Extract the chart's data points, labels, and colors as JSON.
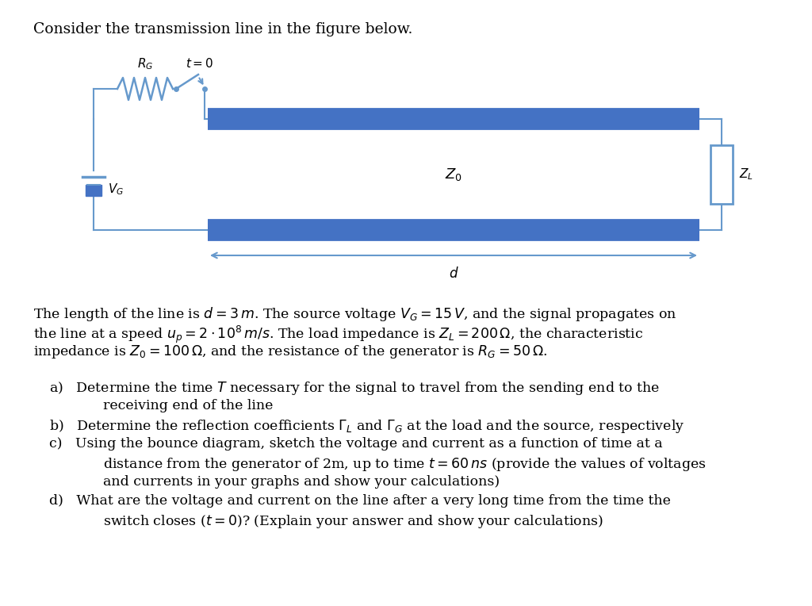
{
  "bg_color": "#ffffff",
  "circuit_color": "#4472C4",
  "wire_color": "#6699CC",
  "text_color": "#000000",
  "title": "Consider the transmission line in the figure below.",
  "p1": "The length of the line is $d = 3\\,m$. The source voltage $V_G = 15\\,V$, and the signal propagates on",
  "p2": "the line at a speed $u_p = 2 \\cdot 10^8\\,m/s$. The load impedance is $Z_L = 200\\,\\Omega$, the characteristic",
  "p3": "impedance is $Z_0 = 100\\,\\Omega$, and the resistance of the generator is $R_G = 50\\,\\Omega$.",
  "a1": "a)   Determine the time $T$ necessary for the signal to travel from the sending end to the",
  "a2": "        receiving end of the line",
  "b1": "b)   Determine the reflection coefficients $\\Gamma_L$ and $\\Gamma_G$ at the load and the source, respectively",
  "c1": "c)   Using the bounce diagram, sketch the voltage and current as a function of time at a",
  "c2": "        distance from the generator of 2m, up to time $t = 60\\,ns$ (provide the values of voltages",
  "c3": "        and currents in your graphs and show your calculations)",
  "d1": "d)   What are the voltage and current on the line after a very long time from the time the",
  "d2": "        switch closes ($t = 0$)? (Explain your answer and show your calculations)"
}
